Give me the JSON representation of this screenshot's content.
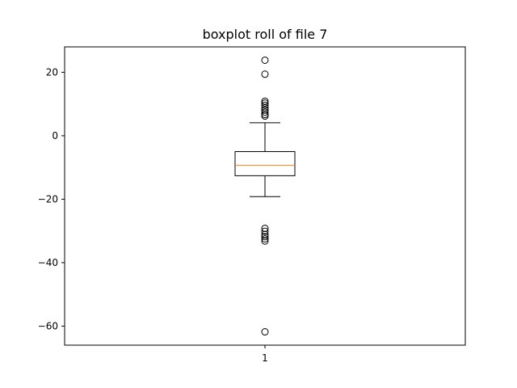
{
  "chart_data": {
    "type": "boxplot",
    "title": "boxplot roll of file 7",
    "xlabel": "",
    "ylabel": "",
    "categories": [
      "1"
    ],
    "ylim": [
      -66,
      28
    ],
    "yticks": [
      20,
      0,
      -20,
      -40,
      -60
    ],
    "ytick_labels": [
      "20",
      "0",
      "−20",
      "−40",
      "−60"
    ],
    "grid": false,
    "box": {
      "q1": -12.6,
      "median": -9.3,
      "q3": -5.0,
      "whisker_low": -19.2,
      "whisker_high": 4.1
    },
    "fliers": [
      23.8,
      19.4,
      10.9,
      10.3,
      9.6,
      8.8,
      8.1,
      7.4,
      6.7,
      6.2,
      -29.2,
      -30.1,
      -31.1,
      -31.8,
      -32.5,
      -33.2,
      -61.8
    ],
    "colors": {
      "box": "#000000",
      "median": "#ff7f0e",
      "flier": "#000000"
    }
  }
}
